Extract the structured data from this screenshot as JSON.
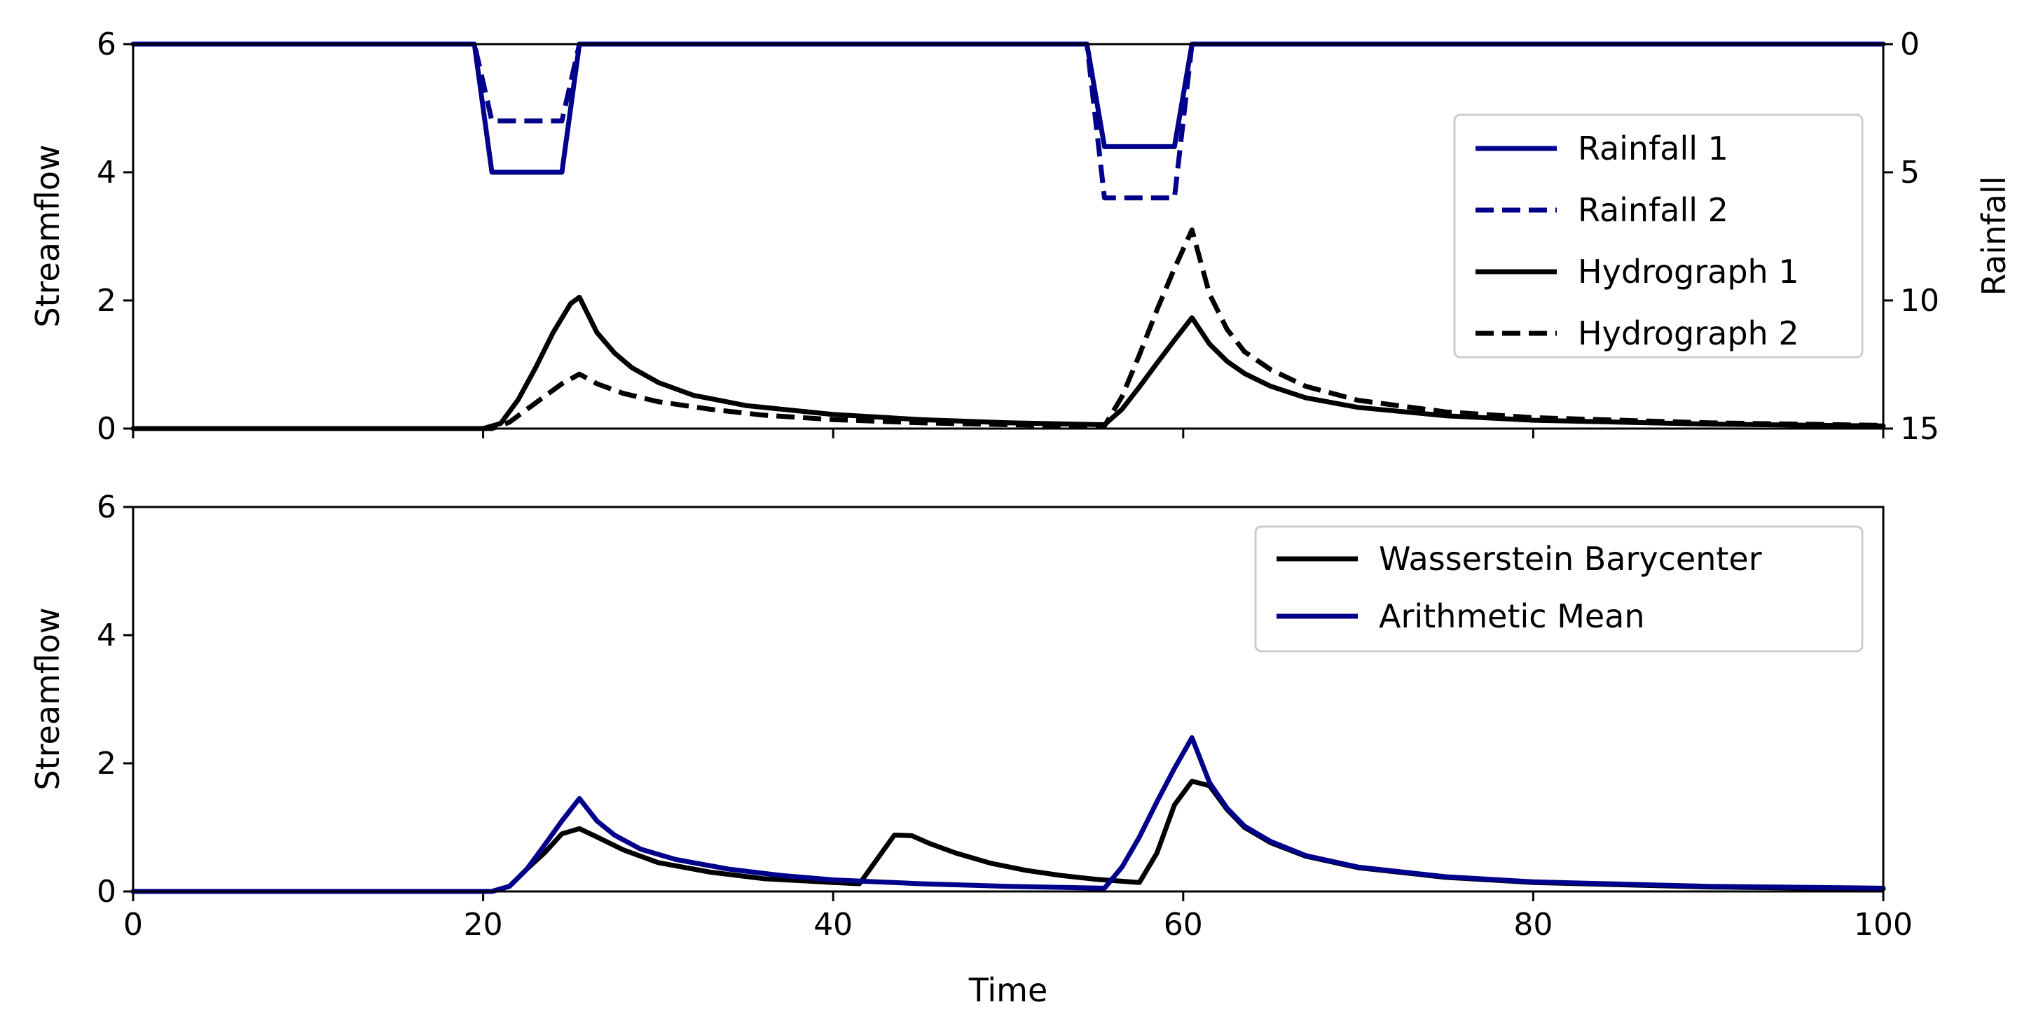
{
  "chart_data": [
    {
      "type": "line",
      "title": "",
      "xlabel": "",
      "ylabel": "Streamflow",
      "y2label": "Rainfall",
      "xlim": [
        0,
        100
      ],
      "ylim": [
        0,
        6
      ],
      "y2lim": [
        15,
        0
      ],
      "y2_inverted": true,
      "xticks": [
        0,
        20,
        40,
        60,
        80,
        100
      ],
      "xtick_labels_shown": false,
      "yticks": [
        0,
        2,
        4,
        6
      ],
      "y2ticks": [
        0,
        5,
        10,
        15
      ],
      "legend_position": "right",
      "series": [
        {
          "name": "Rainfall 1",
          "axis": "right",
          "color": "#00008b",
          "dash": "solid",
          "x": [
            0,
            19.5,
            20.5,
            24.5,
            25.5,
            54.5,
            55.5,
            59.5,
            60.5,
            100
          ],
          "y": [
            0,
            0,
            5,
            5,
            0,
            0,
            4,
            4,
            0,
            0
          ]
        },
        {
          "name": "Rainfall 2",
          "axis": "right",
          "color": "#00008b",
          "dash": "dashed",
          "x": [
            0,
            19.5,
            20.5,
            24.5,
            25.5,
            54.5,
            55.5,
            59.5,
            60.5,
            100
          ],
          "y": [
            0,
            0,
            3,
            3,
            0,
            0,
            6,
            6,
            0,
            0
          ]
        },
        {
          "name": "Hydrograph 1",
          "axis": "left",
          "color": "#000000",
          "dash": "solid",
          "x": [
            0,
            20,
            21,
            22,
            23,
            24,
            25,
            25.5,
            26.5,
            27.5,
            28.5,
            30,
            32,
            35,
            40,
            45,
            50,
            55.5,
            56.5,
            57.5,
            58.5,
            59.5,
            60.5,
            61.5,
            62.5,
            63.5,
            65,
            67,
            70,
            75,
            80,
            90,
            100
          ],
          "y": [
            0,
            0,
            0.08,
            0.45,
            0.95,
            1.5,
            1.95,
            2.05,
            1.5,
            1.18,
            0.95,
            0.72,
            0.52,
            0.36,
            0.22,
            0.14,
            0.09,
            0.06,
            0.3,
            0.65,
            1.02,
            1.38,
            1.73,
            1.32,
            1.05,
            0.86,
            0.66,
            0.48,
            0.33,
            0.2,
            0.13,
            0.07,
            0.04
          ]
        },
        {
          "name": "Hydrograph 2",
          "axis": "left",
          "color": "#000000",
          "dash": "dashed",
          "x": [
            0,
            20.5,
            21.5,
            22.5,
            23.5,
            24.5,
            25.5,
            26.5,
            28,
            30,
            33,
            36,
            40,
            45,
            50,
            55.5,
            56.5,
            57.5,
            58.5,
            59.5,
            60.5,
            61.5,
            62.5,
            63.5,
            65,
            67,
            70,
            75,
            80,
            90,
            100
          ],
          "y": [
            0,
            0,
            0.1,
            0.3,
            0.5,
            0.7,
            0.85,
            0.7,
            0.55,
            0.42,
            0.3,
            0.21,
            0.14,
            0.09,
            0.06,
            0.04,
            0.5,
            1.15,
            1.85,
            2.5,
            3.1,
            2.1,
            1.55,
            1.2,
            0.92,
            0.66,
            0.44,
            0.26,
            0.17,
            0.09,
            0.05
          ]
        }
      ]
    },
    {
      "type": "line",
      "title": "",
      "xlabel": "Time",
      "ylabel": "Streamflow",
      "xlim": [
        0,
        100
      ],
      "ylim": [
        0,
        6
      ],
      "xticks": [
        0,
        20,
        40,
        60,
        80,
        100
      ],
      "yticks": [
        0,
        2,
        4,
        6
      ],
      "legend_position": "top-right",
      "series": [
        {
          "name": "Wasserstein Barycenter",
          "color": "#000000",
          "dash": "solid",
          "x": [
            0,
            20.5,
            21.5,
            22.5,
            23.5,
            24.5,
            25.5,
            26.5,
            28,
            30,
            33,
            36,
            40,
            41.5,
            42.5,
            43.5,
            44.5,
            45.5,
            47,
            49,
            51,
            53,
            55,
            57.5,
            58.5,
            59.5,
            60.5,
            61.5,
            62.5,
            63.5,
            65,
            67,
            70,
            75,
            80,
            90,
            100
          ],
          "y": [
            0,
            0,
            0.08,
            0.35,
            0.6,
            0.9,
            0.98,
            0.85,
            0.65,
            0.45,
            0.3,
            0.2,
            0.14,
            0.12,
            0.5,
            0.88,
            0.87,
            0.75,
            0.6,
            0.44,
            0.33,
            0.25,
            0.19,
            0.14,
            0.6,
            1.35,
            1.72,
            1.65,
            1.28,
            1.0,
            0.76,
            0.55,
            0.37,
            0.22,
            0.14,
            0.07,
            0.04
          ]
        },
        {
          "name": "Arithmetic Mean",
          "color": "#00008b",
          "dash": "solid",
          "x": [
            0,
            20.5,
            21.5,
            22.5,
            23.5,
            24.5,
            25.5,
            26.5,
            27.5,
            29,
            31,
            34,
            37,
            40,
            45,
            50,
            55.5,
            56.5,
            57.5,
            58.5,
            59.5,
            60.5,
            61.5,
            62.5,
            63.5,
            65,
            67,
            70,
            75,
            80,
            90,
            100
          ],
          "y": [
            0,
            0,
            0.08,
            0.35,
            0.72,
            1.1,
            1.45,
            1.1,
            0.88,
            0.66,
            0.5,
            0.35,
            0.25,
            0.18,
            0.12,
            0.08,
            0.05,
            0.38,
            0.85,
            1.4,
            1.92,
            2.4,
            1.7,
            1.3,
            1.02,
            0.78,
            0.56,
            0.38,
            0.23,
            0.15,
            0.08,
            0.05
          ]
        }
      ]
    }
  ]
}
